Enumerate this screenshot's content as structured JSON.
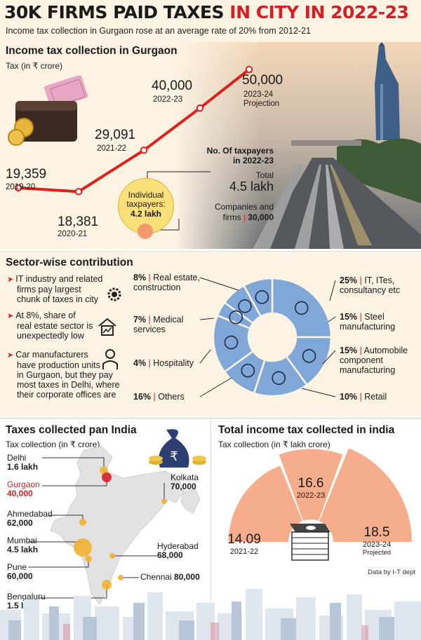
{
  "header": {
    "headline_black": "30K FIRMS PAID TAXES",
    "headline_red": "IN CITY IN 2022-23",
    "subhead": "Income tax collection in Gurgaon rose at an average rate of 20% from 2012-21"
  },
  "section1": {
    "title": "Income tax collection in Gurgaon",
    "unit": "Tax  (in ₹ crore)",
    "taxpayers_heading_1": "No. Of taxpayers",
    "taxpayers_heading_2": "in 2022-23",
    "total_label": "Total",
    "total_value": "4.5 lakh",
    "individual_label_1": "Individual",
    "individual_label_2": "taxpayers:",
    "individual_value": "4.2 lakh",
    "companies_label_1": "Companies and",
    "companies_label_2": "firms",
    "companies_sep": "|",
    "companies_value": "30,000"
  },
  "section2": {
    "title": "Sector-wise contribution",
    "bullets": [
      {
        "line1": "IT industry and related",
        "line2": "firms pay largest",
        "line3": "chunk of taxes in city",
        "line4": ""
      },
      {
        "line1": "At 8%, share of",
        "line2": "real estate sector is",
        "line3": "unexpectedly low",
        "line4": ""
      },
      {
        "line1": "Car manufacturers",
        "line2": "have production units",
        "line3": "in Gurgaon, but they pay",
        "line4": "most taxes in Delhi, where",
        "line5": "their corporate offices are"
      }
    ]
  },
  "section3": {
    "title": "Taxes collected pan India",
    "unit": "Tax collection (in ₹ crore)",
    "cities": [
      {
        "name": "Delhi",
        "value": "1.6 lakh"
      },
      {
        "name": "Gurgaon",
        "value": "40,000"
      },
      {
        "name": "Ahmedabad",
        "value": "62,000"
      },
      {
        "name": "Mumbai",
        "value": "4.5 lakh"
      },
      {
        "name": "Pune",
        "value": "60,000"
      },
      {
        "name": "Bengaluru",
        "value": "1.5 lakh"
      },
      {
        "name": "Kolkata",
        "value": "70,000"
      },
      {
        "name": "Hyderabad",
        "value": "68,000"
      },
      {
        "name": "Chennai",
        "value": "80,000"
      }
    ]
  },
  "section4": {
    "title": "Total income tax collected in india",
    "unit": "Tax collection (in ₹ lakh crore)",
    "credit": "Data by I-T dept",
    "projected_label": "Projected"
  },
  "colors": {
    "accent_red": "#d51f26",
    "cream": "#fdf3e3",
    "donut_blue": "#7fa8d8",
    "fan_salmon": "#f6ad8b",
    "highlight_yellow": "#fbe07a"
  },
  "icons": {
    "wallet": "wallet-icon",
    "money_bag": "rupee-bag-icon",
    "cash_stack": "cash-stack-icon",
    "gear": "gear-icon",
    "house": "house-chart-icon",
    "car_person": "car-person-icon"
  },
  "chart_data": [
    {
      "type": "line",
      "title": "Income tax collection in Gurgaon",
      "ylabel": "Tax  (in ₹ crore)",
      "x": [
        "2019-20",
        "2020-21",
        "2021-22",
        "2022-23",
        "2023-24"
      ],
      "x_notes": [
        "",
        "",
        "",
        "",
        "Projection"
      ],
      "values": [
        19359,
        18381,
        29091,
        40000,
        50000
      ],
      "value_labels": [
        "19,359",
        "18,381",
        "29,091",
        "40,000",
        "50,000"
      ],
      "ylim": [
        15000,
        52000
      ]
    },
    {
      "type": "pie",
      "title": "Sector-wise contribution",
      "categories": [
        "IT, ITes, consultancy etc",
        "Steel manufacturing",
        "Automobile component manufacturing",
        "Retail",
        "Others",
        "Hospitality",
        "Medical services",
        "Real estate, construction"
      ],
      "category_lines": [
        [
          "IT, ITes,",
          "consultancy etc"
        ],
        [
          "Steel",
          "manufacturing"
        ],
        [
          "Automobile",
          "component",
          "manufacturing"
        ],
        [
          "Retail"
        ],
        [
          "Others"
        ],
        [
          "Hospitality"
        ],
        [
          "Medical",
          "services"
        ],
        [
          "Real estate,",
          "construction"
        ]
      ],
      "values": [
        25,
        15,
        15,
        10,
        16,
        4,
        7,
        8
      ],
      "value_labels": [
        "25%",
        "15%",
        "15%",
        "10%",
        "16%",
        "4%",
        "7%",
        "8%"
      ],
      "donut": true
    },
    {
      "type": "bar",
      "title": "Total income tax collected in india",
      "ylabel": "Tax collection (in ₹ lakh crore)",
      "categories": [
        "2021-22",
        "2022-23",
        "2023-24"
      ],
      "values": [
        14.09,
        16.6,
        18.5
      ],
      "value_labels": [
        "14.09",
        "16.6",
        "18.5"
      ],
      "notes": [
        "",
        "",
        "Projected"
      ]
    }
  ]
}
